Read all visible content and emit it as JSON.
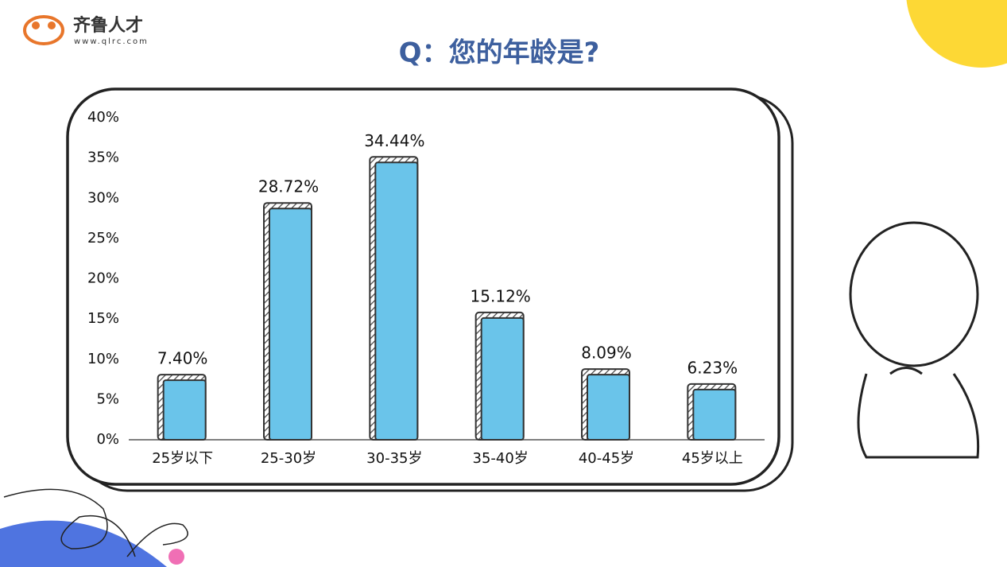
{
  "header": {
    "brand": "齐鲁人才",
    "url": "www.qlrc.com"
  },
  "chart_data": {
    "type": "bar",
    "title": "Q：您的年龄是?",
    "categories": [
      "25岁以下",
      "25-30岁",
      "30-35岁",
      "35-40岁",
      "40-45岁",
      "45岁以上"
    ],
    "values": [
      7.4,
      28.72,
      34.44,
      15.12,
      8.09,
      6.23
    ],
    "value_labels": [
      "7.40%",
      "28.72%",
      "34.44%",
      "15.12%",
      "8.09%",
      "6.23%"
    ],
    "color": "#6ac4ea",
    "ylim": [
      0,
      40
    ],
    "yticks": [
      {
        "value": 0,
        "label": "0%"
      },
      {
        "value": 5,
        "label": "5%"
      },
      {
        "value": 10,
        "label": "10%"
      },
      {
        "value": 15,
        "label": "15%"
      },
      {
        "value": 20,
        "label": "20%"
      },
      {
        "value": 25,
        "label": "25%"
      },
      {
        "value": 30,
        "label": "30%"
      },
      {
        "value": 35,
        "label": "35%"
      },
      {
        "value": 40,
        "label": "40%"
      }
    ],
    "grid": false
  }
}
